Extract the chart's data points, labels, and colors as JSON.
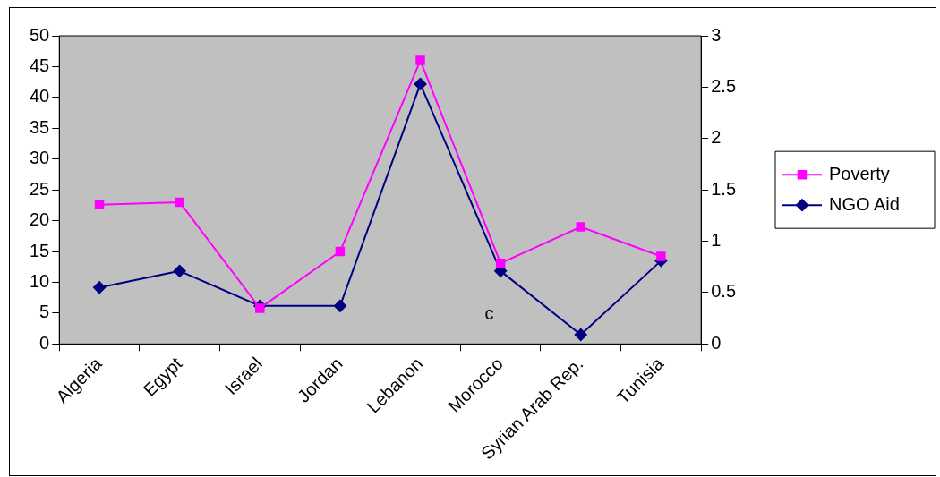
{
  "chart_data": {
    "type": "line",
    "categories": [
      "Algeria",
      "Egypt",
      "Israel",
      "Jordan",
      "Lebanon",
      "Morocco",
      "Syrian Arab Rep.",
      "Tunisia"
    ],
    "series": [
      {
        "name": "Poverty",
        "color": "#ff00ff",
        "marker": "square",
        "values": [
          22.6,
          23,
          5.8,
          15,
          46,
          13.1,
          19,
          14.2
        ]
      },
      {
        "name": "NGO Aid",
        "color": "#000080",
        "marker": "diamond",
        "axis": "y2",
        "values": [
          0.55,
          0.71,
          0.37,
          0.37,
          2.53,
          0.71,
          0.09,
          0.81
        ]
      }
    ],
    "ylim": [
      0,
      50
    ],
    "yticks": [
      0,
      5,
      10,
      15,
      20,
      25,
      30,
      35,
      40,
      45,
      50
    ],
    "y2lim": [
      0,
      3
    ],
    "y2ticks": [
      0,
      0.5,
      1,
      1.5,
      2,
      2.5,
      3
    ],
    "grid": false,
    "legend": "right",
    "line_style": "solid",
    "annotations": [
      "c"
    ]
  }
}
